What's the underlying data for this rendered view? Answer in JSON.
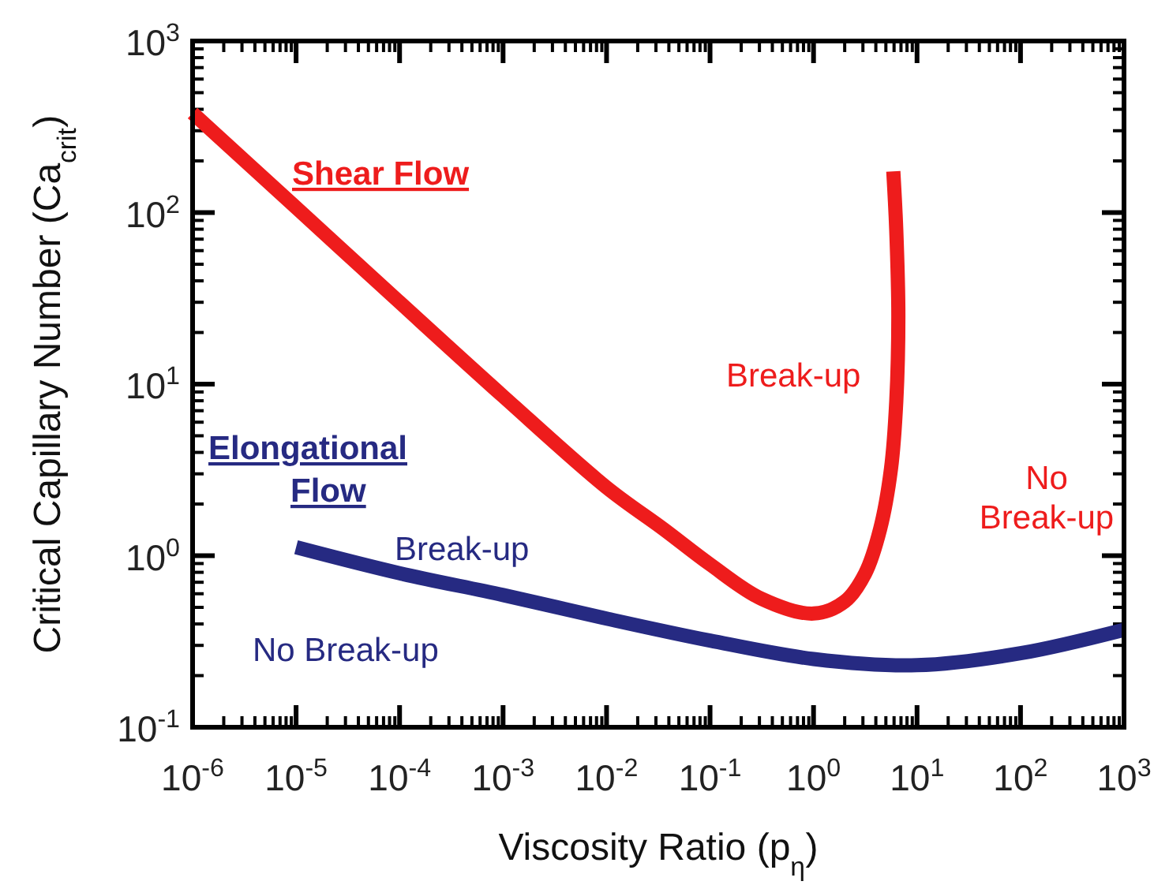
{
  "chart_data": {
    "type": "line",
    "xlabel": "Viscosity Ratio (p$_{η}$)",
    "ylabel": "Critical Capillary Number (Ca$_{crit}$)",
    "log": "xy",
    "grid": false,
    "line_style": "solid",
    "xlim": [
      1e-06,
      1000
    ],
    "ylim": [
      0.1,
      1000
    ],
    "xticks": [
      {
        "value": 1e-06,
        "label": "10$^{-6}$"
      },
      {
        "value": 1e-05,
        "label": "10$^{-5}$"
      },
      {
        "value": 0.0001,
        "label": "10$^{-4}$"
      },
      {
        "value": 0.001,
        "label": "10$^{-3}$"
      },
      {
        "value": 0.01,
        "label": "10$^{-2}$"
      },
      {
        "value": 0.1,
        "label": "10$^{-1}$"
      },
      {
        "value": 1,
        "label": "10$^{0}$"
      },
      {
        "value": 10,
        "label": "10$^{1}$"
      },
      {
        "value": 100,
        "label": "10$^{2}$"
      },
      {
        "value": 1000,
        "label": "10$^{3}$"
      }
    ],
    "yticks": [
      {
        "value": 0.1,
        "label": "10$^{-1}$"
      },
      {
        "value": 1,
        "label": "10$^{0}$"
      },
      {
        "value": 10,
        "label": "10$^{1}$"
      },
      {
        "value": 100,
        "label": "10$^{2}$"
      },
      {
        "value": 1000,
        "label": "10$^{3}$"
      }
    ],
    "series": [
      {
        "name": "Shear Flow",
        "color": "#ee1c1c",
        "x": [
          1e-06,
          1e-05,
          0.0001,
          0.001,
          0.01,
          0.0355,
          0.1,
          0.316,
          1,
          2,
          3.16,
          4.4,
          5.6,
          6.3,
          6.6,
          6.3,
          5.9
        ],
        "values": [
          380,
          107,
          30,
          8.5,
          2.5,
          1.43,
          0.89,
          0.56,
          0.46,
          0.54,
          0.79,
          1.43,
          3.2,
          7.9,
          25,
          79,
          174
        ]
      },
      {
        "name": "Elongational Flow",
        "color": "#262a82",
        "x": [
          1e-05,
          0.0001,
          0.001,
          0.01,
          0.1,
          1,
          10,
          100,
          1000
        ],
        "values": [
          1.12,
          0.79,
          0.59,
          0.43,
          0.32,
          0.25,
          0.23,
          0.27,
          0.37
        ]
      }
    ],
    "annotations": [
      "Break-up",
      "No\nBreak-up",
      "Break-up",
      "No Break-up"
    ]
  }
}
